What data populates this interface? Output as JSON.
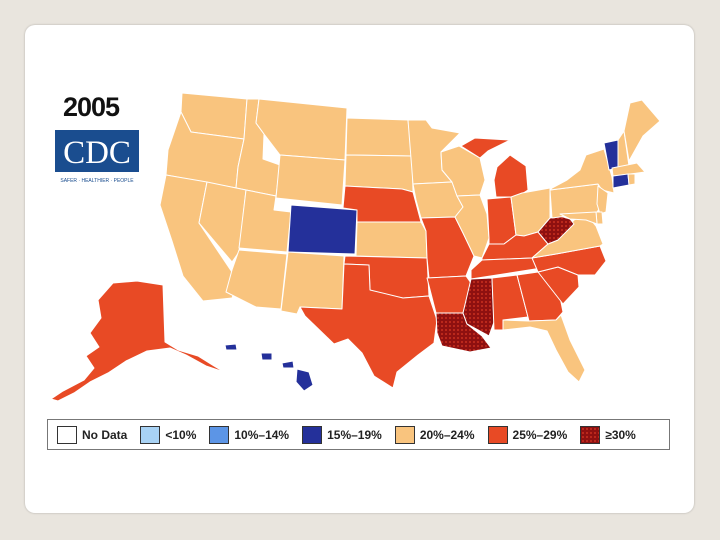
{
  "title": "2005",
  "logo": {
    "text": "CDC",
    "tagline": "SAFER · HEALTHIER · PEOPLE"
  },
  "colors": {
    "no_data": "#ffffff",
    "lt10": "#a8d2f4",
    "10_14": "#5c95e6",
    "15_19": "#24309a",
    "20_24": "#f9c47e",
    "25_29": "#e84a25",
    "ge30": "#8e1010"
  },
  "legend": [
    {
      "label": "No Data",
      "color": "#ffffff"
    },
    {
      "label": "<10%",
      "color": "#a8d2f4"
    },
    {
      "label": "10%–14%",
      "color": "#5c95e6"
    },
    {
      "label": "15%–19%",
      "color": "#24309a"
    },
    {
      "label": "20%–24%",
      "color": "#f9c47e"
    },
    {
      "label": "25%–29%",
      "color": "#e84a25"
    },
    {
      "label": "≥30%",
      "color": "#8e1010",
      "pattern": "dots"
    }
  ],
  "states": {
    "15_19": [
      "Colorado",
      "Vermont",
      "Connecticut",
      "Hawaii"
    ],
    "20_24": [
      "Washington",
      "Oregon",
      "California",
      "Idaho",
      "Nevada",
      "Montana",
      "Wyoming",
      "Utah",
      "Arizona",
      "New Mexico",
      "North Dakota",
      "South Dakota",
      "Minnesota",
      "Iowa",
      "Wisconsin",
      "Illinois",
      "Kansas",
      "Ohio",
      "New York",
      "Pennsylvania",
      "Maine",
      "New Hampshire",
      "Massachusetts",
      "Rhode Island",
      "New Jersey",
      "Delaware",
      "Maryland",
      "Virginia",
      "Florida"
    ],
    "25_29": [
      "Nebraska",
      "Missouri",
      "Oklahoma",
      "Texas",
      "Arkansas",
      "Michigan",
      "Indiana",
      "Kentucky",
      "Tennessee",
      "Alabama",
      "Georgia",
      "South Carolina",
      "North Carolina",
      "Alaska"
    ],
    "ge30": [
      "Louisiana",
      "Mississippi",
      "West Virginia"
    ]
  }
}
